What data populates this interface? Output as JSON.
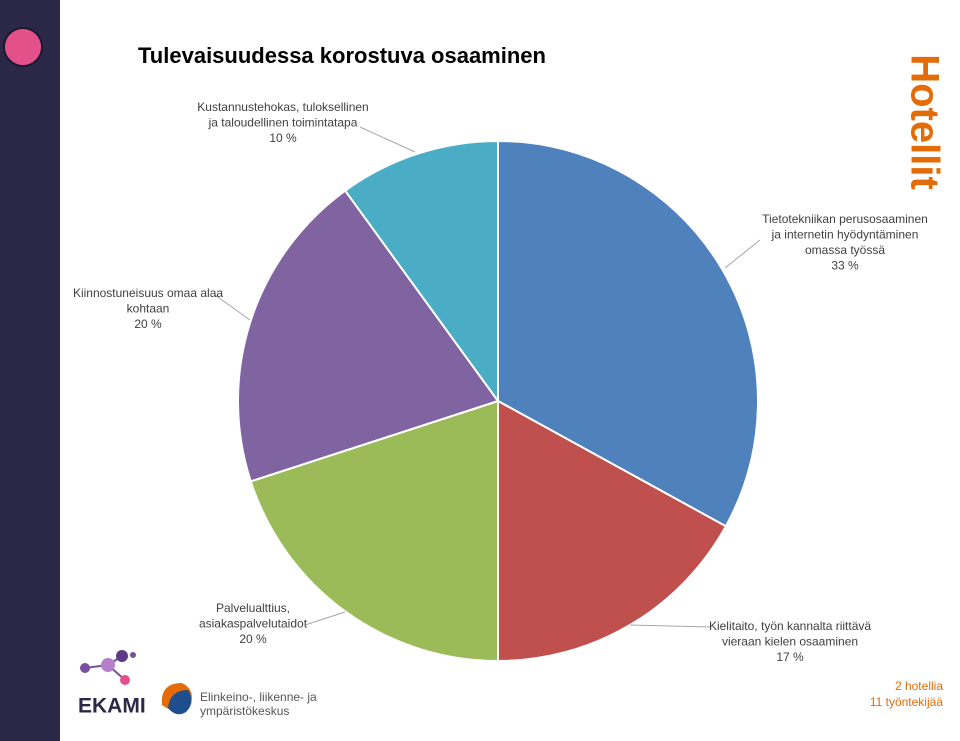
{
  "chart_data": {
    "type": "pie",
    "title": "Tulevaisuudessa korostuva osaaminen",
    "categories": [
      [
        "Tietotekniikan perusosaaminen",
        "ja internetin hyödyntäminen",
        "omassa työssä"
      ],
      [
        "Kielitaito, työn kannalta riittävä",
        "vieraan kielen osaaminen"
      ],
      [
        "Palvelualttius,",
        "asiakaspalvelutaidot"
      ],
      [
        "Kiinnostuneisuus omaa alaa",
        "kohtaan"
      ],
      [
        "Kustannustehokas, tuloksellinen",
        "ja taloudellinen toimintatapa"
      ]
    ],
    "values": [
      33,
      17,
      20,
      20,
      10
    ],
    "value_labels": [
      "33 %",
      "17 %",
      "20 %",
      "20 %",
      "10 %"
    ],
    "colors": [
      "#4f81bd",
      "#c0504d",
      "#9bbb59",
      "#8064a2",
      "#4bacc6"
    ]
  },
  "side_title": "Hotellit",
  "footer": {
    "lines": [
      "2 hotellia",
      "11 työntekijää"
    ]
  },
  "logos": {
    "ekami": "EKAMI",
    "ely": [
      "Elinkeino-, liikenne- ja",
      "ympäristökeskus"
    ]
  }
}
